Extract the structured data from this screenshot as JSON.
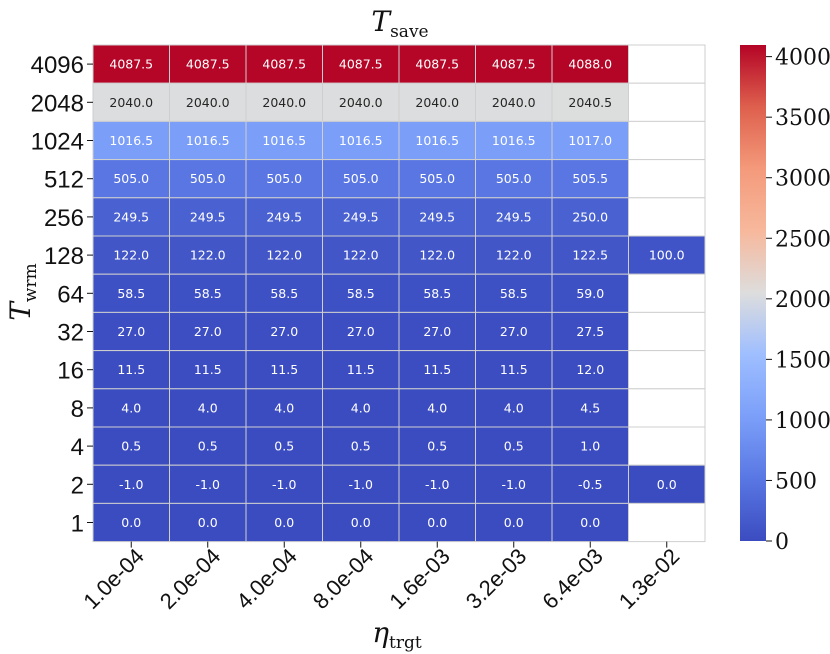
{
  "chart_data": {
    "type": "heatmap",
    "title": {
      "main": "T",
      "sub": "save"
    },
    "ylabel": {
      "main": "T",
      "sub": "wrm"
    },
    "xlabel": {
      "main": "η",
      "sub": "trgt"
    },
    "x_categories": [
      "1.0e-04",
      "2.0e-04",
      "4.0e-04",
      "8.0e-04",
      "1.6e-03",
      "3.2e-03",
      "6.4e-03",
      "1.3e-02"
    ],
    "y_categories": [
      "4096",
      "2048",
      "1024",
      "512",
      "256",
      "128",
      "64",
      "32",
      "16",
      "8",
      "4",
      "2",
      "1"
    ],
    "values": [
      [
        4087.5,
        4087.5,
        4087.5,
        4087.5,
        4087.5,
        4087.5,
        4088.0,
        null
      ],
      [
        2040.0,
        2040.0,
        2040.0,
        2040.0,
        2040.0,
        2040.0,
        2040.5,
        null
      ],
      [
        1016.5,
        1016.5,
        1016.5,
        1016.5,
        1016.5,
        1016.5,
        1017.0,
        null
      ],
      [
        505.0,
        505.0,
        505.0,
        505.0,
        505.0,
        505.0,
        505.5,
        null
      ],
      [
        249.5,
        249.5,
        249.5,
        249.5,
        249.5,
        249.5,
        250.0,
        null
      ],
      [
        122.0,
        122.0,
        122.0,
        122.0,
        122.0,
        122.0,
        122.5,
        100.0
      ],
      [
        58.5,
        58.5,
        58.5,
        58.5,
        58.5,
        58.5,
        59.0,
        null
      ],
      [
        27.0,
        27.0,
        27.0,
        27.0,
        27.0,
        27.0,
        27.5,
        null
      ],
      [
        11.5,
        11.5,
        11.5,
        11.5,
        11.5,
        11.5,
        12.0,
        null
      ],
      [
        4.0,
        4.0,
        4.0,
        4.0,
        4.0,
        4.0,
        4.5,
        null
      ],
      [
        0.5,
        0.5,
        0.5,
        0.5,
        0.5,
        0.5,
        1.0,
        null
      ],
      [
        -1.0,
        -1.0,
        -1.0,
        -1.0,
        -1.0,
        -1.0,
        -0.5,
        0.0
      ],
      [
        0.0,
        0.0,
        0.0,
        0.0,
        0.0,
        0.0,
        0.0,
        null
      ]
    ],
    "colormap": "coolwarm",
    "color_range": [
      0,
      4096
    ],
    "colorbar_ticks": [
      0,
      500,
      1000,
      1500,
      2000,
      2500,
      3000,
      3500,
      4000
    ],
    "cell_border_color": "#cfcfcf",
    "missing_color": "#ffffff"
  }
}
